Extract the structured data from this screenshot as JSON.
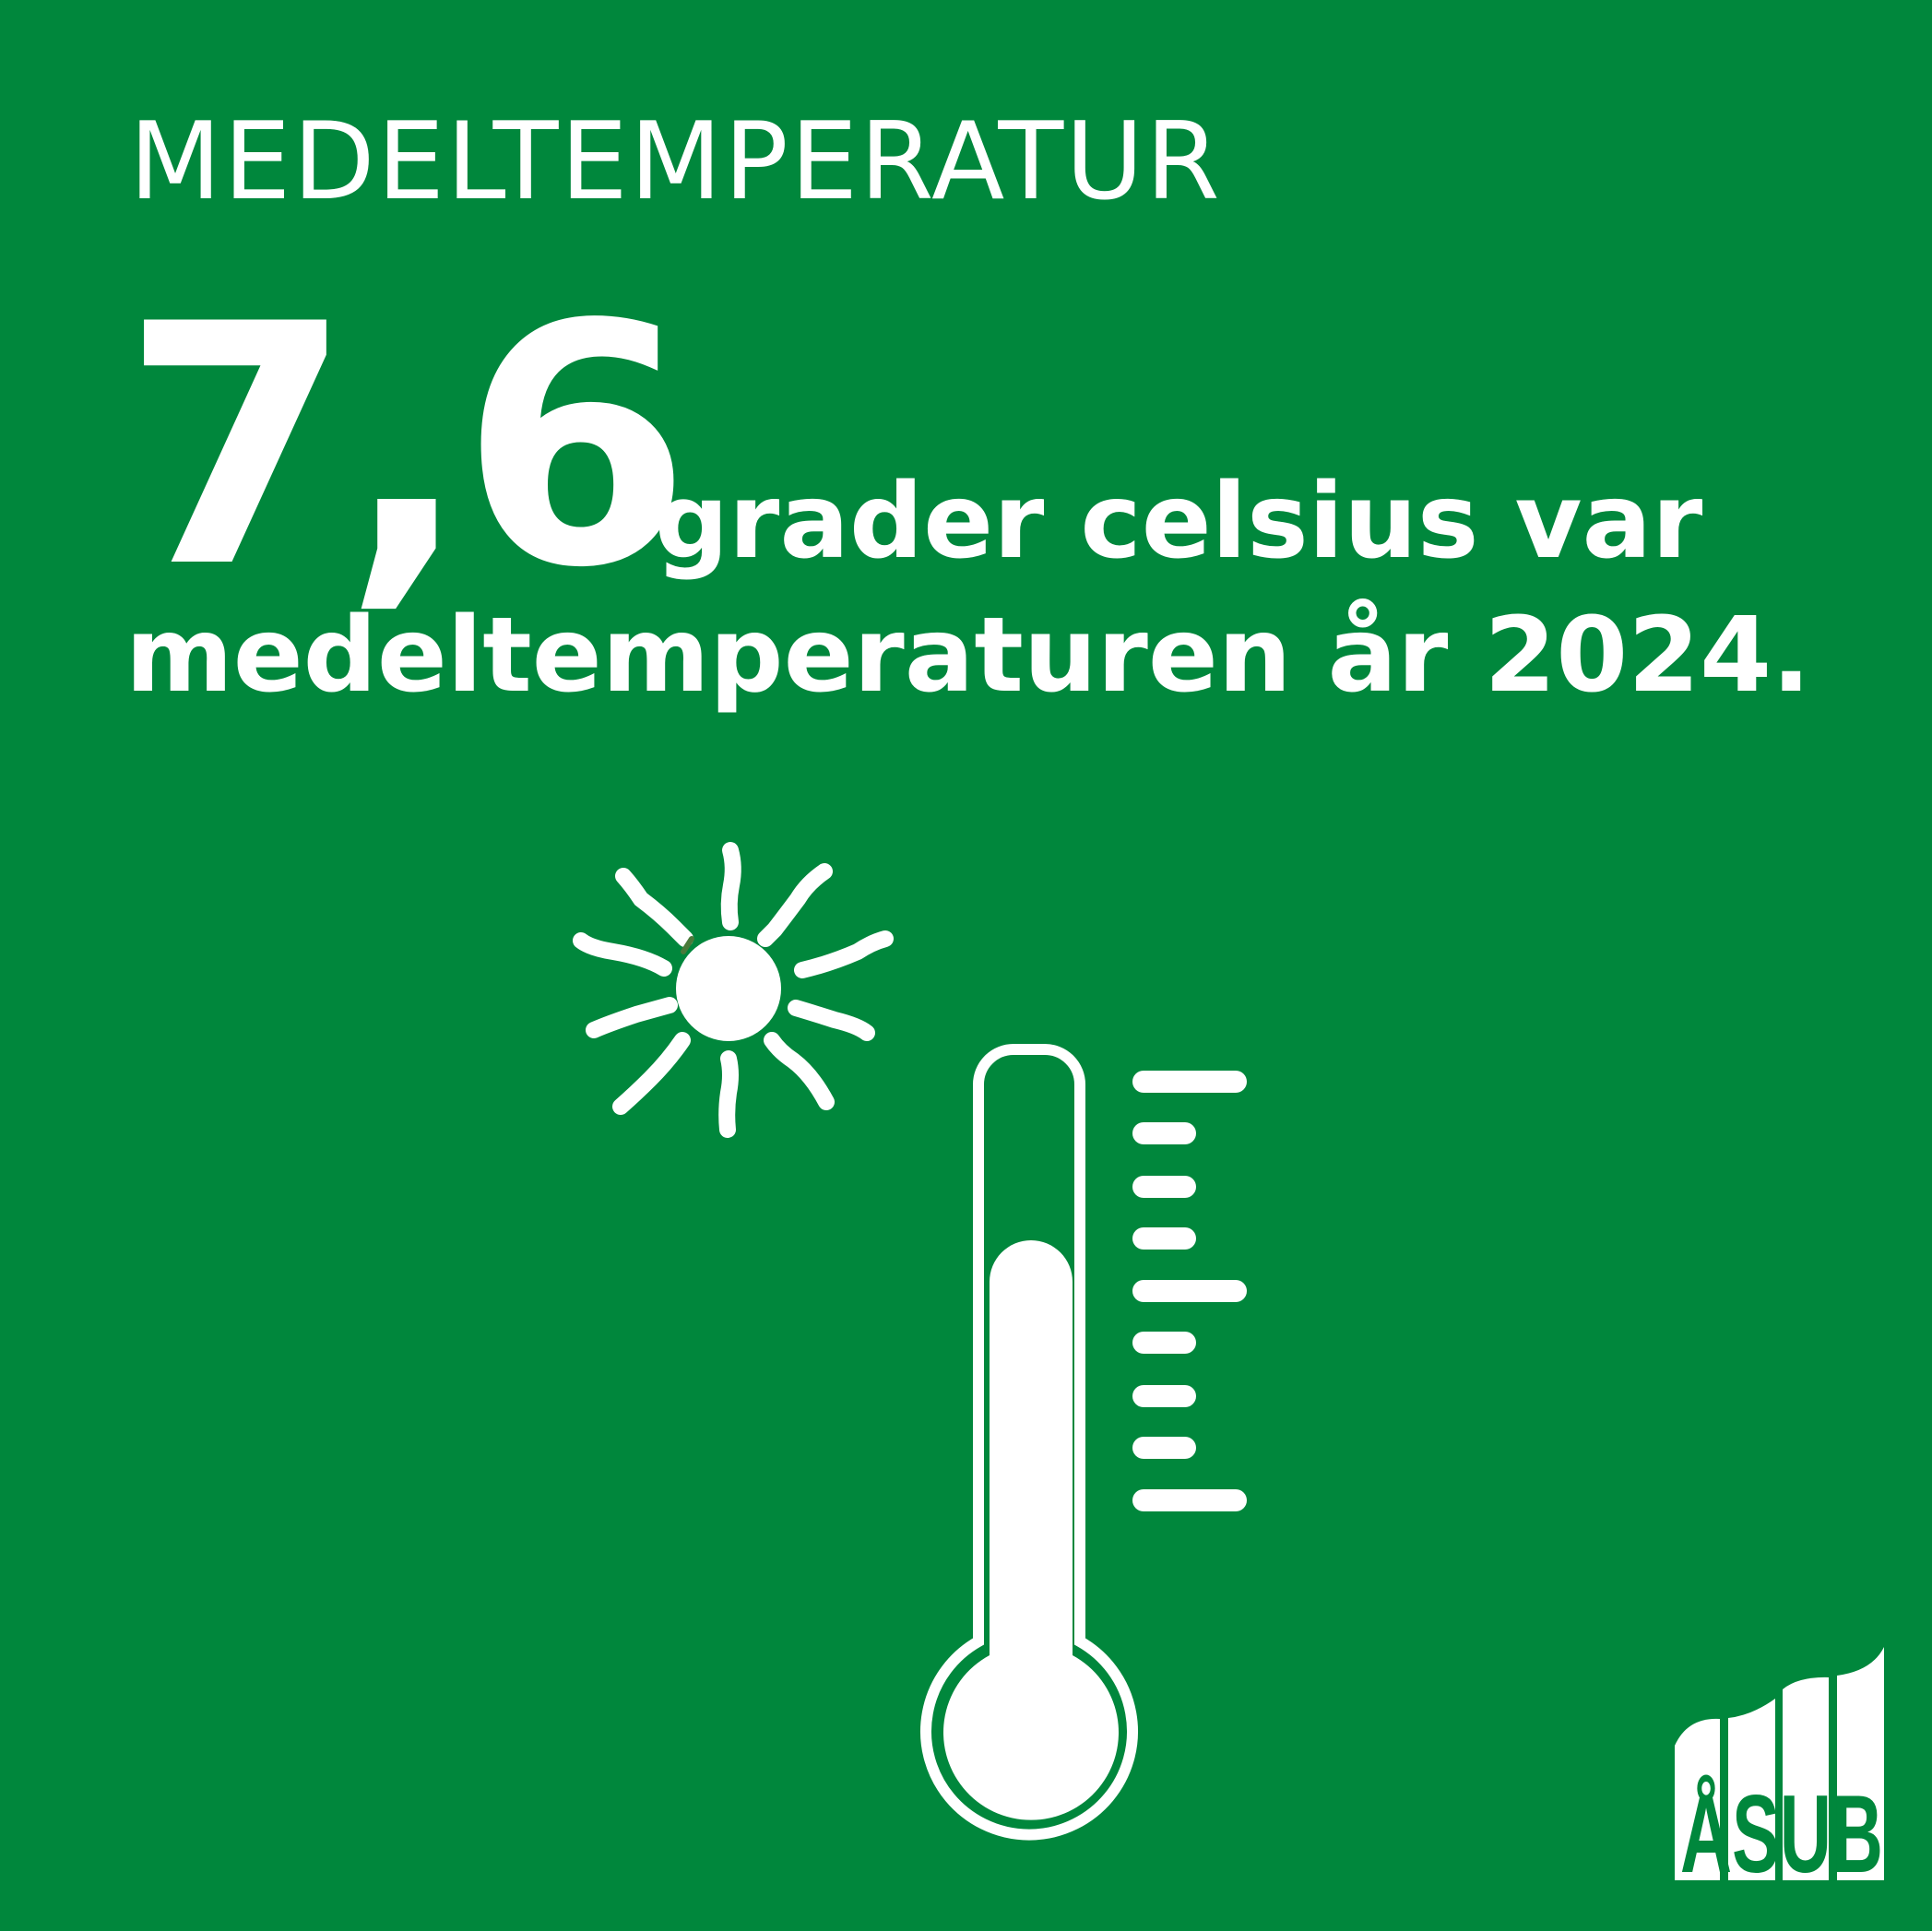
{
  "heading": "MEDELTEMPERATUR",
  "value": "7,6",
  "sentence_line1": "grader celsius var",
  "sentence_line2": "medeltemperaturen år 2024.",
  "logo_text": "ÅSUB",
  "colors": {
    "background": "#00873c",
    "foreground": "#ffffff"
  },
  "icons": [
    "sun-icon",
    "thermometer-icon",
    "asub-logo"
  ]
}
